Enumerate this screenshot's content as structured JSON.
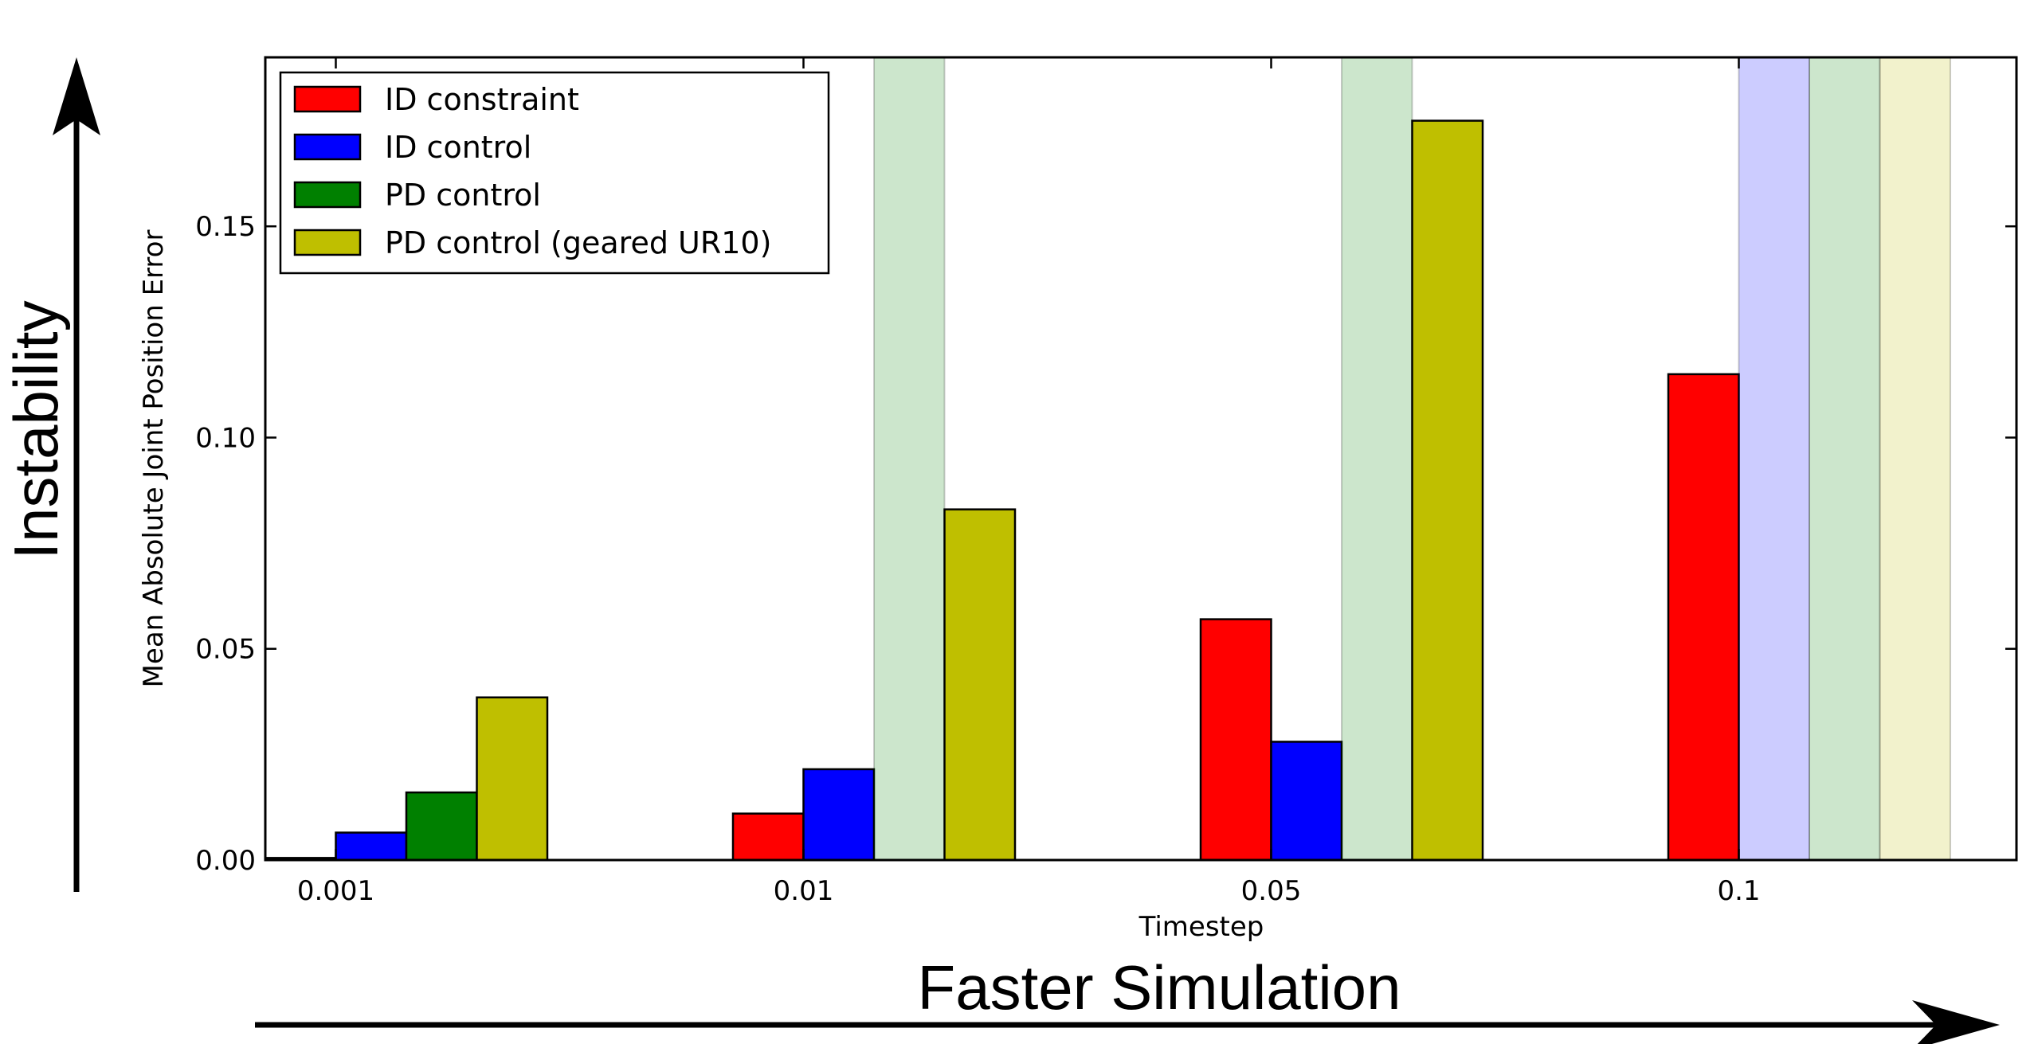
{
  "chart_data": {
    "type": "bar",
    "xlabel": "Timestep",
    "ylabel": "Mean Absolute Joint Position Error",
    "ylim": [
      0,
      0.19
    ],
    "yticks": [
      "0.00",
      "0.05",
      "0.10",
      "0.15"
    ],
    "ytick_values": [
      0,
      0.05,
      0.1,
      0.15
    ],
    "categories": [
      "0.001",
      "0.01",
      "0.05",
      "0.1"
    ],
    "series": [
      {
        "name": "ID constraint",
        "color": "#ff0000",
        "values": [
          0.0005,
          0.011,
          0.057,
          0.115
        ],
        "unstable": [
          false,
          false,
          false,
          false
        ]
      },
      {
        "name": "ID control",
        "color": "#0000ff",
        "values": [
          0.0065,
          0.0215,
          0.028,
          null
        ],
        "unstable": [
          false,
          false,
          false,
          true
        ]
      },
      {
        "name": "PD control",
        "color": "#008000",
        "values": [
          0.016,
          null,
          null,
          null
        ],
        "unstable": [
          false,
          true,
          true,
          true
        ]
      },
      {
        "name": "PD control (geared UR10)",
        "color": "#bfbf00",
        "values": [
          0.0385,
          0.083,
          0.175,
          null
        ],
        "unstable": [
          false,
          false,
          false,
          true
        ]
      }
    ],
    "legend_position": "top-left",
    "grid": false
  },
  "annotations": {
    "vertical_arrow_label": "Instability",
    "horizontal_arrow_label": "Faster Simulation"
  }
}
